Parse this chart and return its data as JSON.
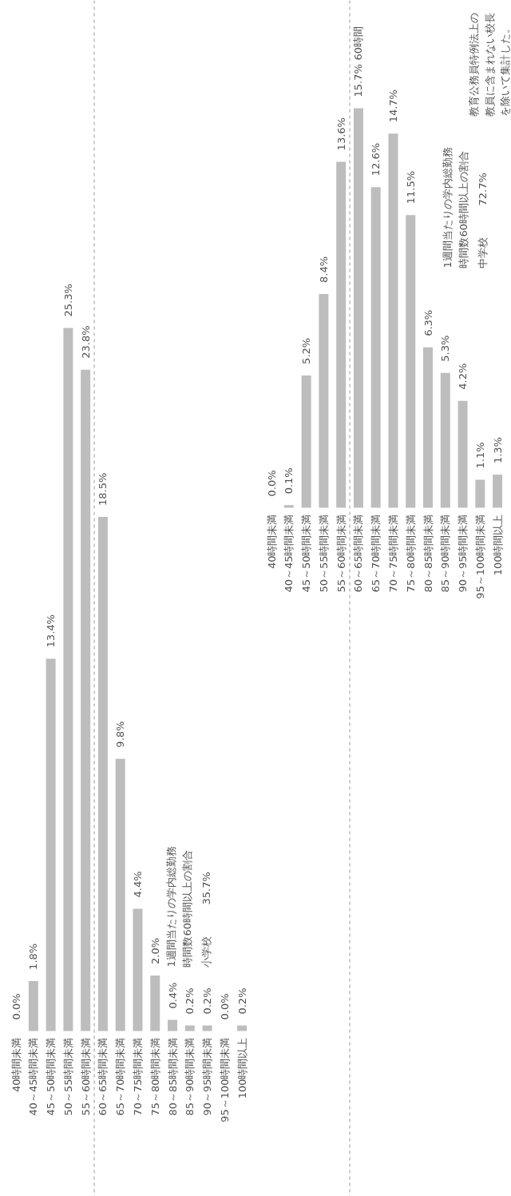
{
  "chart_data": [
    {
      "type": "bar",
      "categories": [
        "40時間未満",
        "40～45時間未満",
        "45～50時間未満",
        "50～55時間未満",
        "55～60時間未満",
        "60～65時間未満",
        "65～70時間未満",
        "70～75時間未満",
        "75～80時間未満",
        "80～85時間未満",
        "85～90時間未満",
        "90～95時間未満",
        "95～100時間未満",
        "100時間以上"
      ],
      "values": [
        0.0,
        1.8,
        13.4,
        25.3,
        23.8,
        18.5,
        9.8,
        4.4,
        2.0,
        0.4,
        0.2,
        0.2,
        0.0,
        0.2
      ],
      "value_labels": [
        "0.0%",
        "1.8%",
        "13.4%",
        "25.3%",
        "23.8%",
        "18.5%",
        "9.8%",
        "4.4%",
        "2.0%",
        "0.4%",
        "0.2%",
        "0.2%",
        "0.0%",
        "0.2%"
      ],
      "color": "#bdbdbd",
      "tick_labels": "x",
      "annotations": [
        "1週間当たりの学内総勤務時間数60時間以上の割合",
        "小学校　　　35.7%"
      ]
    },
    {
      "type": "bar",
      "categories": [
        "40時間未満",
        "40～45時間未満",
        "45～50時間未満",
        "50～55時間未満",
        "55～60時間未満",
        "60～65時間未満",
        "65～70時間未満",
        "70～75時間未満",
        "75～80時間未満",
        "80～85時間未満",
        "85～90時間未満",
        "90～95時間未満",
        "95～100時間未満",
        "100時間以上"
      ],
      "values": [
        0.0,
        0.1,
        5.2,
        8.4,
        13.6,
        15.7,
        12.6,
        14.7,
        11.5,
        6.3,
        5.3,
        4.2,
        1.1,
        1.3
      ],
      "value_labels": [
        "0.0%",
        "0.1%",
        "5.2%",
        "8.4%",
        "13.6%",
        "15.7%",
        "12.6%",
        "14.7%",
        "11.5%",
        "6.3%",
        "5.3%",
        "4.2%",
        "1.1%",
        "1.3%"
      ],
      "color": "#bdbdbd",
      "tick_labels": "x",
      "annotations": [
        "60時間",
        "教育公務員特例法上の教員に含まれない校長を除いて集計した。",
        "1週間当たりの学内総勤務時間数60時間以上の割合",
        "中学校　　　72.7%"
      ]
    }
  ]
}
